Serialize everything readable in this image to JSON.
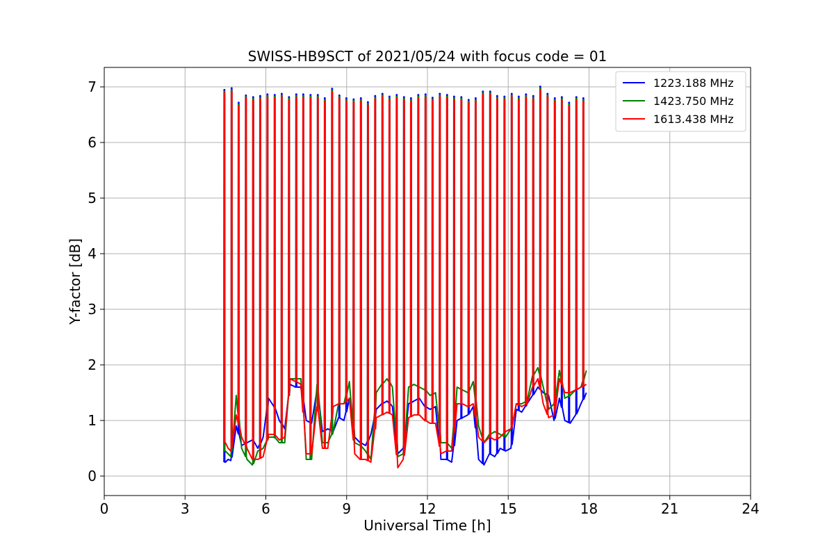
{
  "chart_data": {
    "type": "line",
    "title": "SWISS-HB9SCT of 2021/05/24 with focus code = 01",
    "xlabel": "Universal Time [h]",
    "ylabel": "Y-factor [dB]",
    "xlim": [
      0,
      24
    ],
    "ylim": [
      -0.35,
      7.35
    ],
    "xticks": [
      0,
      3,
      6,
      9,
      12,
      15,
      18,
      21,
      24
    ],
    "yticks": [
      0,
      1,
      2,
      3,
      4,
      5,
      6,
      7
    ],
    "grid": true,
    "legend_position": "top-right",
    "calibration_times_h": [
      4.45,
      4.72,
      4.98,
      5.25,
      5.52,
      5.78,
      6.05,
      6.32,
      6.58,
      6.85,
      7.12,
      7.38,
      7.65,
      7.92,
      8.18,
      8.45,
      8.72,
      8.98,
      9.25,
      9.52,
      9.78,
      10.05,
      10.32,
      10.58,
      10.85,
      11.12,
      11.38,
      11.65,
      11.92,
      12.18,
      12.45,
      12.72,
      12.98,
      13.25,
      13.52,
      13.78,
      14.05,
      14.32,
      14.58,
      14.85,
      15.12,
      15.38,
      15.65,
      15.92,
      16.18,
      16.45,
      16.72,
      16.98,
      17.25,
      17.52,
      17.78
    ],
    "peak_values_db": [
      6.95,
      6.98,
      6.72,
      6.85,
      6.82,
      6.84,
      6.87,
      6.86,
      6.88,
      6.82,
      6.87,
      6.87,
      6.86,
      6.86,
      6.8,
      6.97,
      6.85,
      6.8,
      6.78,
      6.8,
      6.73,
      6.84,
      6.88,
      6.83,
      6.86,
      6.82,
      6.8,
      6.86,
      6.87,
      6.81,
      6.88,
      6.86,
      6.83,
      6.82,
      6.77,
      6.8,
      6.92,
      6.92,
      6.84,
      6.83,
      6.88,
      6.83,
      6.87,
      6.84,
      7.01,
      6.88,
      6.8,
      6.82,
      6.72,
      6.82,
      6.8
    ],
    "series": [
      {
        "name": "1223.188 MHz",
        "color": "#0000ff",
        "baseline_times_h": [
          4.5,
          4.6,
          4.7,
          4.9,
          5.1,
          5.3,
          5.5,
          5.7,
          5.9,
          6.1,
          6.3,
          6.5,
          6.7,
          6.9,
          7.1,
          7.3,
          7.5,
          7.7,
          7.9,
          8.1,
          8.3,
          8.5,
          8.7,
          8.9,
          9.1,
          9.3,
          9.5,
          9.7,
          9.9,
          10.1,
          10.3,
          10.5,
          10.7,
          10.9,
          11.1,
          11.3,
          11.5,
          11.7,
          11.9,
          12.1,
          12.3,
          12.5,
          12.7,
          12.9,
          13.1,
          13.3,
          13.5,
          13.7,
          13.9,
          14.1,
          14.3,
          14.5,
          14.7,
          14.9,
          15.1,
          15.3,
          15.5,
          15.7,
          15.9,
          16.1,
          16.3,
          16.5,
          16.7,
          16.9,
          17.1,
          17.3,
          17.5,
          17.7,
          17.9
        ],
        "baseline_values_db": [
          0.25,
          0.3,
          0.28,
          0.9,
          0.55,
          0.6,
          0.65,
          0.5,
          0.7,
          1.4,
          1.25,
          1.0,
          0.85,
          1.65,
          1.6,
          1.6,
          1.0,
          0.95,
          1.55,
          0.8,
          0.85,
          0.8,
          1.05,
          1.0,
          1.4,
          0.7,
          0.6,
          0.55,
          0.75,
          1.2,
          1.3,
          1.35,
          1.25,
          0.4,
          0.5,
          1.3,
          1.35,
          1.4,
          1.25,
          1.2,
          1.25,
          0.3,
          0.3,
          0.25,
          1.0,
          1.05,
          1.1,
          1.25,
          0.3,
          0.2,
          0.4,
          0.35,
          0.5,
          0.45,
          0.5,
          1.2,
          1.15,
          1.3,
          1.45,
          1.6,
          1.5,
          1.45,
          1.0,
          1.4,
          1.0,
          0.95,
          1.1,
          1.3,
          1.5
        ]
      },
      {
        "name": "1423.750 MHz",
        "color": "#008000",
        "baseline_times_h": [
          4.5,
          4.6,
          4.7,
          4.9,
          5.1,
          5.3,
          5.5,
          5.7,
          5.9,
          6.1,
          6.3,
          6.5,
          6.7,
          6.9,
          7.1,
          7.3,
          7.5,
          7.7,
          7.9,
          8.1,
          8.3,
          8.5,
          8.7,
          8.9,
          9.1,
          9.3,
          9.5,
          9.7,
          9.9,
          10.1,
          10.3,
          10.5,
          10.7,
          10.9,
          11.1,
          11.3,
          11.5,
          11.7,
          11.9,
          12.1,
          12.3,
          12.5,
          12.7,
          12.9,
          13.1,
          13.3,
          13.5,
          13.7,
          13.9,
          14.1,
          14.3,
          14.5,
          14.7,
          14.9,
          15.1,
          15.3,
          15.5,
          15.7,
          15.9,
          16.1,
          16.3,
          16.5,
          16.7,
          16.9,
          17.1,
          17.3,
          17.5,
          17.7,
          17.9
        ],
        "baseline_values_db": [
          0.45,
          0.4,
          0.35,
          1.45,
          0.5,
          0.3,
          0.2,
          0.45,
          0.5,
          0.7,
          0.7,
          0.6,
          0.6,
          1.75,
          1.75,
          1.75,
          0.3,
          0.3,
          1.65,
          0.6,
          0.6,
          0.8,
          1.3,
          1.3,
          1.7,
          0.6,
          0.55,
          0.45,
          0.3,
          1.5,
          1.65,
          1.75,
          1.6,
          0.35,
          0.4,
          1.6,
          1.65,
          1.6,
          1.55,
          1.45,
          1.5,
          0.6,
          0.6,
          0.5,
          1.6,
          1.55,
          1.5,
          1.7,
          0.9,
          0.6,
          0.75,
          0.8,
          0.75,
          0.7,
          0.85,
          1.3,
          1.3,
          1.35,
          1.8,
          1.95,
          1.6,
          1.2,
          1.3,
          1.9,
          1.4,
          1.45,
          1.55,
          1.6,
          1.9
        ]
      },
      {
        "name": "1613.438 MHz",
        "color": "#ff0000",
        "baseline_times_h": [
          4.5,
          4.6,
          4.7,
          4.9,
          5.1,
          5.3,
          5.5,
          5.7,
          5.9,
          6.1,
          6.3,
          6.5,
          6.7,
          6.9,
          7.1,
          7.3,
          7.5,
          7.7,
          7.9,
          8.1,
          8.3,
          8.5,
          8.7,
          8.9,
          9.1,
          9.3,
          9.5,
          9.7,
          9.9,
          10.1,
          10.3,
          10.5,
          10.7,
          10.9,
          11.1,
          11.3,
          11.5,
          11.7,
          11.9,
          12.1,
          12.3,
          12.5,
          12.7,
          12.9,
          13.1,
          13.3,
          13.5,
          13.7,
          13.9,
          14.1,
          14.3,
          14.5,
          14.7,
          14.9,
          15.1,
          15.3,
          15.5,
          15.7,
          15.9,
          16.1,
          16.3,
          16.5,
          16.7,
          16.9,
          17.1,
          17.3,
          17.5,
          17.7,
          17.9
        ],
        "baseline_values_db": [
          0.6,
          0.5,
          0.45,
          1.1,
          0.7,
          0.5,
          0.3,
          0.3,
          0.35,
          0.75,
          0.75,
          0.65,
          0.7,
          1.75,
          1.7,
          1.65,
          0.4,
          0.4,
          1.25,
          0.5,
          0.5,
          1.25,
          1.3,
          1.3,
          1.4,
          0.4,
          0.3,
          0.3,
          0.25,
          1.05,
          1.1,
          1.15,
          1.1,
          0.15,
          0.3,
          1.05,
          1.1,
          1.1,
          1.0,
          0.95,
          0.95,
          0.4,
          0.45,
          0.45,
          1.3,
          1.3,
          1.25,
          1.3,
          0.7,
          0.6,
          0.7,
          0.65,
          0.7,
          0.8,
          0.85,
          1.3,
          1.25,
          1.3,
          1.6,
          1.75,
          1.3,
          1.05,
          1.1,
          1.75,
          1.5,
          1.5,
          1.55,
          1.6,
          1.65
        ]
      }
    ]
  }
}
